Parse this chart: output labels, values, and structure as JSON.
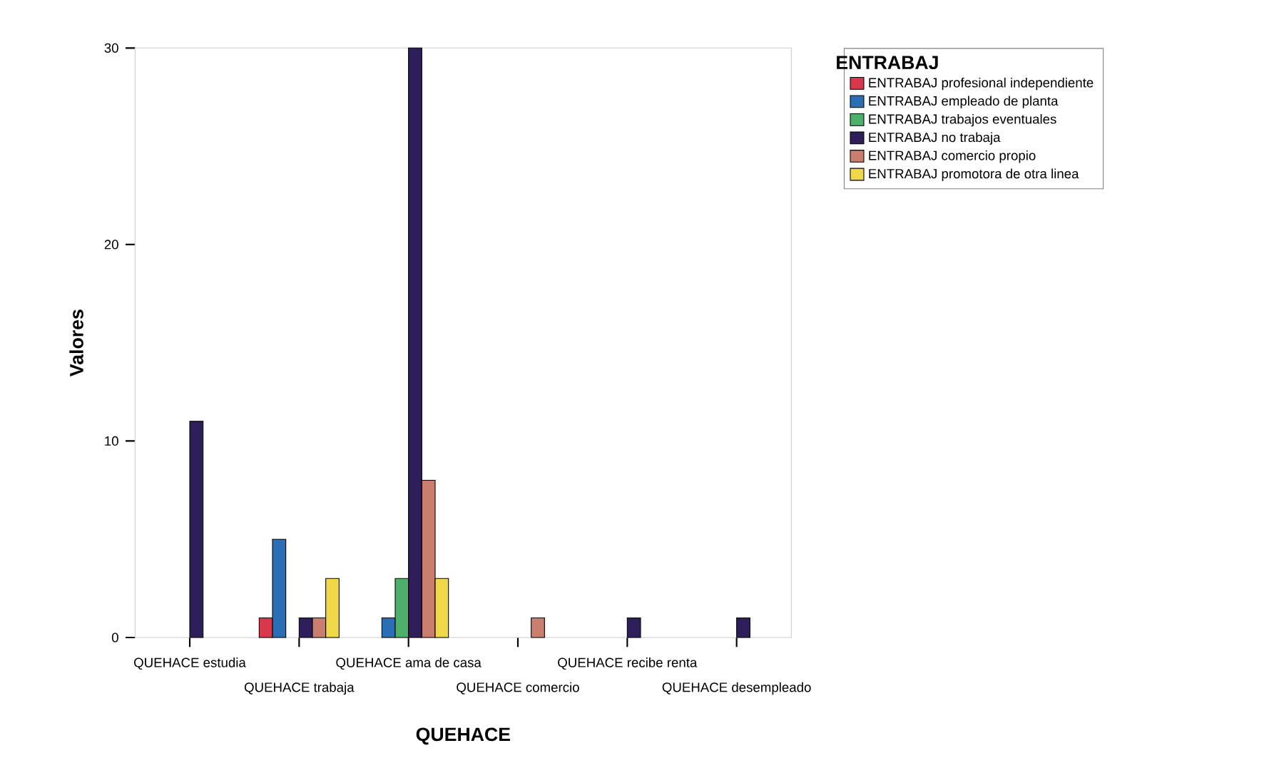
{
  "chart_data": {
    "type": "bar",
    "xlabel": "QUEHACE",
    "ylabel": "Valores",
    "legend_title": "ENTRABAJ",
    "categories": [
      "QUEHACE estudia",
      "QUEHACE trabaja",
      "QUEHACE ama de casa",
      "QUEHACE comercio",
      "QUEHACE recibe renta",
      "QUEHACE desempleado"
    ],
    "series": [
      {
        "name": "ENTRABAJ profesional independiente",
        "color": "#d9384a",
        "values": [
          null,
          1,
          null,
          null,
          null,
          null
        ]
      },
      {
        "name": "ENTRABAJ empleado de planta",
        "color": "#2a6fb5",
        "values": [
          null,
          5,
          1,
          null,
          null,
          null
        ]
      },
      {
        "name": "ENTRABAJ trabajos eventuales",
        "color": "#4caf6a",
        "values": [
          null,
          null,
          3,
          null,
          null,
          null
        ]
      },
      {
        "name": "ENTRABAJ no trabaja",
        "color": "#2e1e5a",
        "values": [
          11,
          1,
          30,
          null,
          1,
          1
        ]
      },
      {
        "name": "ENTRABAJ comercio propio",
        "color": "#c97e6e",
        "values": [
          null,
          1,
          8,
          1,
          null,
          null
        ]
      },
      {
        "name": "ENTRABAJ promotora de otra linea",
        "color": "#f0d84a",
        "values": [
          null,
          3,
          3,
          null,
          null,
          null
        ]
      }
    ],
    "ylim": [
      0,
      30
    ],
    "yticks": [
      0,
      10,
      20,
      30
    ],
    "grid": false,
    "legend": "top right"
  }
}
